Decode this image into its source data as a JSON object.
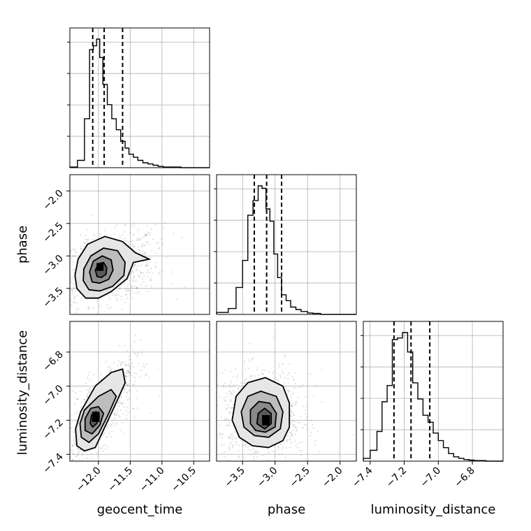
{
  "chart_data": {
    "type": "corner",
    "parameters": [
      "geocent_time",
      "phase",
      "luminosity_distance"
    ],
    "axis_labels": {
      "geocent_time": "geocent_time",
      "phase": "phase",
      "luminosity_distance": "luminosity_distance"
    },
    "ranges": {
      "geocent_time": [
        -12.45,
        -10.25
      ],
      "phase": [
        -3.9,
        -1.75
      ],
      "luminosity_distance": [
        -7.44,
        -6.62
      ]
    },
    "ticks": {
      "geocent_time": [
        -12.0,
        -11.5,
        -11.0,
        -10.5
      ],
      "phase": [
        -3.5,
        -3.0,
        -2.5,
        -2.0
      ],
      "luminosity_distance": [
        -7.4,
        -7.2,
        -7.0,
        -6.8
      ]
    },
    "tick_labels": {
      "geocent_time": [
        "−12.0",
        "−11.5",
        "−11.0",
        "−10.5"
      ],
      "phase": [
        "−3.5",
        "−3.0",
        "−2.5",
        "−2.0"
      ],
      "luminosity_distance": [
        "−7.4",
        "−7.2",
        "−7.0",
        "−6.8"
      ]
    },
    "quantiles": {
      "geocent_time": [
        -12.09,
        -11.91,
        -11.62
      ],
      "phase": [
        -3.32,
        -3.13,
        -2.9
      ],
      "luminosity_distance": [
        -7.26,
        -7.16,
        -7.05
      ]
    },
    "histograms": {
      "geocent_time": {
        "edges": [
          -12.45,
          -12.33,
          -12.22,
          -12.14,
          -12.08,
          -12.03,
          -11.98,
          -11.93,
          -11.86,
          -11.79,
          -11.72,
          -11.65,
          -11.58,
          -11.52,
          -11.45,
          -11.38,
          -11.3,
          -11.22,
          -11.14,
          -11.06,
          -10.98,
          -10.9,
          -10.82,
          -10.7
        ],
        "counts": [
          1,
          12,
          80,
          193,
          199,
          210,
          180,
          136,
          103,
          80,
          62,
          43,
          32,
          22,
          17,
          12,
          8,
          6,
          4,
          2,
          1,
          1,
          1
        ]
      },
      "phase": {
        "edges": [
          -3.9,
          -3.72,
          -3.6,
          -3.5,
          -3.42,
          -3.34,
          -3.26,
          -3.2,
          -3.14,
          -3.08,
          -3.02,
          -2.96,
          -2.9,
          -2.83,
          -2.76,
          -2.68,
          -2.6,
          -2.5,
          -2.42,
          -2.3
        ],
        "counts": [
          4,
          12,
          55,
          110,
          202,
          232,
          262,
          257,
          215,
          190,
          123,
          75,
          40,
          28,
          15,
          10,
          6,
          3,
          2
        ]
      },
      "luminosity_distance": {
        "edges": [
          -7.44,
          -7.4,
          -7.36,
          -7.33,
          -7.3,
          -7.27,
          -7.24,
          -7.21,
          -7.18,
          -7.15,
          -7.12,
          -7.09,
          -7.06,
          -7.03,
          -7.0,
          -6.97,
          -6.94,
          -6.91,
          -6.88,
          -6.85,
          -6.82,
          -6.79,
          -6.76,
          -6.72
        ],
        "counts": [
          5,
          20,
          55,
          110,
          140,
          225,
          228,
          238,
          202,
          145,
          115,
          85,
          72,
          52,
          38,
          25,
          14,
          8,
          5,
          3,
          2,
          1,
          1
        ]
      }
    },
    "density_2d": [
      {
        "x": "geocent_time",
        "y": "phase",
        "peak": [
          -11.96,
          -3.17
        ],
        "peak_cell": [
          -12.03,
          -11.92,
          -3.23,
          -3.11
        ],
        "contours": [
          [
            [
              -12.2,
              -3.65
            ],
            [
              -12.34,
              -3.5
            ],
            [
              -12.37,
              -3.3
            ],
            [
              -12.32,
              -3.05
            ],
            [
              -12.17,
              -2.82
            ],
            [
              -11.9,
              -2.7
            ],
            [
              -11.62,
              -2.78
            ],
            [
              -11.42,
              -2.95
            ],
            [
              -11.2,
              -3.05
            ],
            [
              -11.45,
              -3.1
            ],
            [
              -11.55,
              -3.35
            ],
            [
              -11.8,
              -3.55
            ],
            [
              -12.0,
              -3.65
            ]
          ],
          [
            [
              -12.15,
              -3.52
            ],
            [
              -12.24,
              -3.38
            ],
            [
              -12.23,
              -3.2
            ],
            [
              -12.12,
              -3.0
            ],
            [
              -11.92,
              -2.88
            ],
            [
              -11.7,
              -2.92
            ],
            [
              -11.58,
              -3.1
            ],
            [
              -11.6,
              -3.3
            ],
            [
              -11.78,
              -3.47
            ],
            [
              -11.98,
              -3.54
            ]
          ],
          [
            [
              -12.1,
              -3.4
            ],
            [
              -12.14,
              -3.25
            ],
            [
              -12.08,
              -3.08
            ],
            [
              -11.94,
              -3.0
            ],
            [
              -11.8,
              -3.06
            ],
            [
              -11.77,
              -3.22
            ],
            [
              -11.84,
              -3.36
            ],
            [
              -11.98,
              -3.42
            ]
          ],
          [
            [
              -12.02,
              -3.32
            ],
            [
              -12.05,
              -3.22
            ],
            [
              -12.0,
              -3.12
            ],
            [
              -11.92,
              -3.1
            ],
            [
              -11.87,
              -3.18
            ],
            [
              -11.88,
              -3.28
            ],
            [
              -11.95,
              -3.33
            ]
          ]
        ]
      },
      {
        "x": "geocent_time",
        "y": "luminosity_distance",
        "peak": [
          -12.02,
          -7.18
        ],
        "peak_cell": [
          -12.1,
          -11.98,
          -7.21,
          -7.15
        ],
        "contours": [
          [
            [
              -12.34,
              -7.35
            ],
            [
              -12.36,
              -7.25
            ],
            [
              -12.28,
              -7.15
            ],
            [
              -12.05,
              -7.0
            ],
            [
              -11.8,
              -6.92
            ],
            [
              -11.62,
              -6.9
            ],
            [
              -11.58,
              -6.98
            ],
            [
              -11.7,
              -7.08
            ],
            [
              -11.9,
              -7.24
            ],
            [
              -12.05,
              -7.36
            ],
            [
              -12.22,
              -7.38
            ]
          ],
          [
            [
              -12.27,
              -7.3
            ],
            [
              -12.29,
              -7.22
            ],
            [
              -12.22,
              -7.14
            ],
            [
              -12.0,
              -7.06
            ],
            [
              -11.8,
              -7.02
            ],
            [
              -11.72,
              -7.06
            ],
            [
              -11.85,
              -7.17
            ],
            [
              -12.0,
              -7.28
            ],
            [
              -12.15,
              -7.33
            ]
          ],
          [
            [
              -12.21,
              -7.26
            ],
            [
              -12.21,
              -7.19
            ],
            [
              -12.12,
              -7.13
            ],
            [
              -12.0,
              -7.12
            ],
            [
              -11.92,
              -7.16
            ],
            [
              -11.98,
              -7.23
            ],
            [
              -12.1,
              -7.28
            ]
          ],
          [
            [
              -12.13,
              -7.22
            ],
            [
              -12.11,
              -7.17
            ],
            [
              -12.04,
              -7.15
            ],
            [
              -11.99,
              -7.18
            ],
            [
              -12.03,
              -7.22
            ],
            [
              -12.09,
              -7.24
            ]
          ]
        ]
      },
      {
        "x": "phase",
        "y": "luminosity_distance",
        "peak": [
          -3.14,
          -7.2
        ],
        "peak_cell": [
          -3.2,
          -3.08,
          -7.23,
          -7.17
        ],
        "contours": [
          [
            [
              -3.55,
              -7.3
            ],
            [
              -3.66,
              -7.2
            ],
            [
              -3.6,
              -7.06
            ],
            [
              -3.42,
              -6.98
            ],
            [
              -3.15,
              -6.95
            ],
            [
              -2.88,
              -7.0
            ],
            [
              -2.78,
              -7.1
            ],
            [
              -2.78,
              -7.24
            ],
            [
              -2.88,
              -7.32
            ],
            [
              -3.1,
              -7.36
            ],
            [
              -3.35,
              -7.35
            ]
          ],
          [
            [
              -3.48,
              -7.24
            ],
            [
              -3.52,
              -7.15
            ],
            [
              -3.42,
              -7.06
            ],
            [
              -3.22,
              -7.03
            ],
            [
              -2.98,
              -7.06
            ],
            [
              -2.88,
              -7.15
            ],
            [
              -2.92,
              -7.25
            ],
            [
              -3.1,
              -7.3
            ],
            [
              -3.32,
              -7.29
            ]
          ],
          [
            [
              -3.38,
              -7.22
            ],
            [
              -3.38,
              -7.14
            ],
            [
              -3.25,
              -7.09
            ],
            [
              -3.08,
              -7.1
            ],
            [
              -2.98,
              -7.16
            ],
            [
              -3.0,
              -7.24
            ],
            [
              -3.15,
              -7.27
            ],
            [
              -3.3,
              -7.26
            ]
          ],
          [
            [
              -3.28,
              -7.22
            ],
            [
              -3.26,
              -7.16
            ],
            [
              -3.16,
              -7.13
            ],
            [
              -3.06,
              -7.16
            ],
            [
              -3.06,
              -7.22
            ],
            [
              -3.16,
              -7.25
            ]
          ]
        ]
      }
    ]
  }
}
